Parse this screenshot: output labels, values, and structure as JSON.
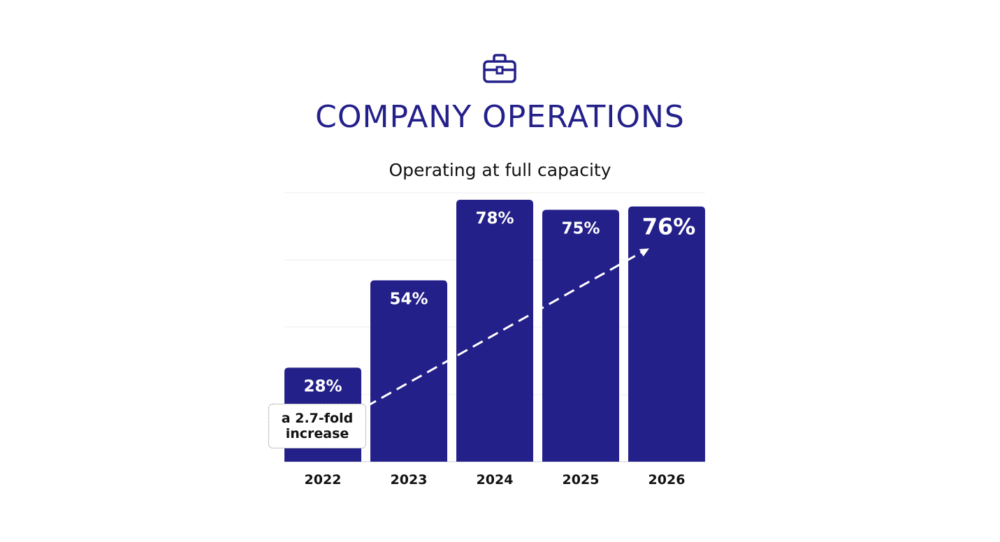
{
  "header": {
    "icon": "briefcase-icon",
    "title": "COMPANY OPERATIONS"
  },
  "chart_data": {
    "type": "bar",
    "title": "Operating at full capacity",
    "xlabel": "",
    "ylabel": "",
    "categories": [
      "2022",
      "2023",
      "2024",
      "2025",
      "2026"
    ],
    "values": [
      28,
      54,
      78,
      75,
      76
    ],
    "value_labels": [
      "28%",
      "54%",
      "78%",
      "75%",
      "76%"
    ],
    "ylim": [
      0,
      78
    ],
    "grid": true,
    "legend": "none",
    "annotation": "a 2.7-fold increase",
    "bar_color": "#24208a"
  }
}
